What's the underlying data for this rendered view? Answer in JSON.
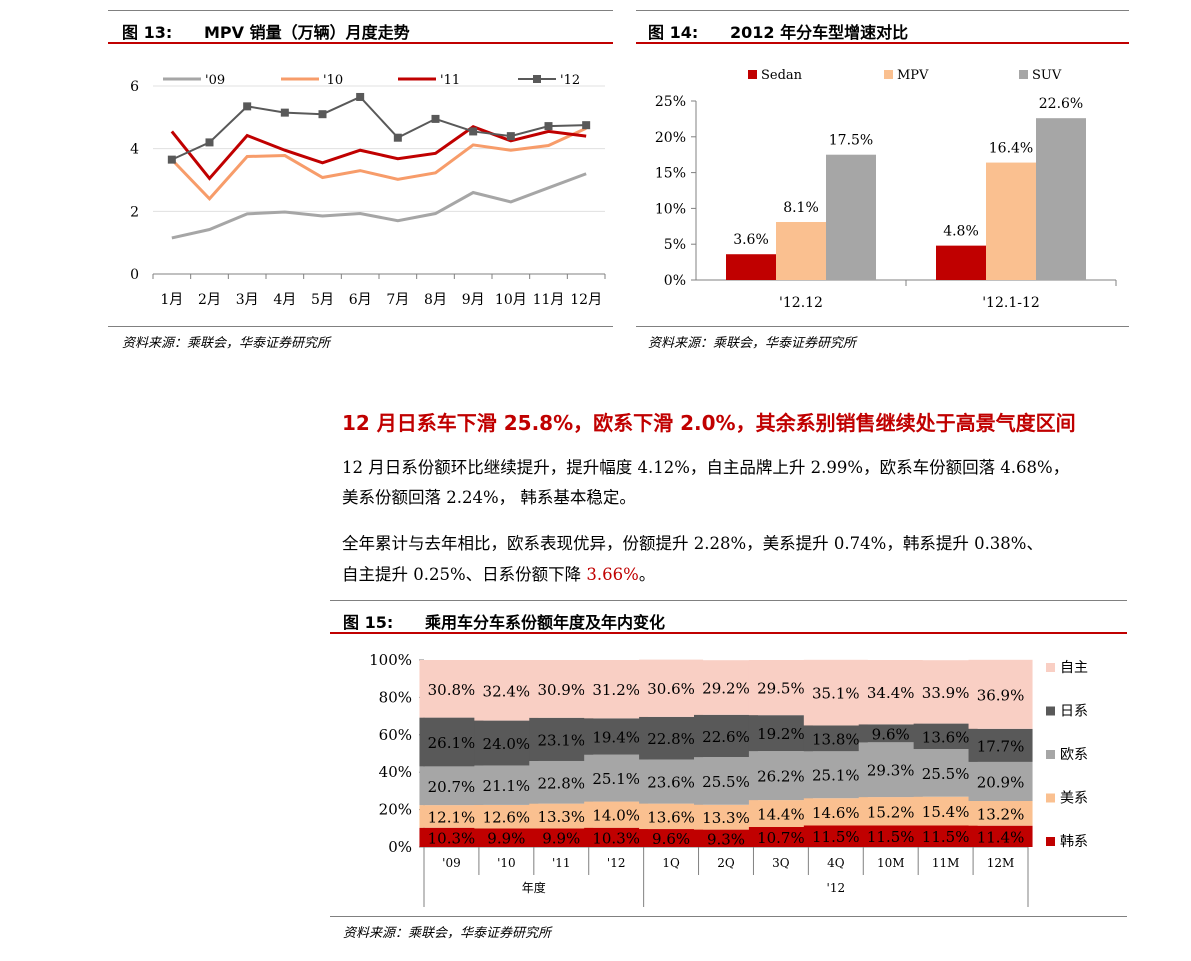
{
  "fig13": {
    "label": "图 13:",
    "title": "MPV 销量（万辆）月度走势",
    "source": "资料来源：乘联会，华泰证券研究所",
    "chart_data": {
      "type": "line",
      "categories": [
        "1月",
        "2月",
        "3月",
        "4月",
        "5月",
        "6月",
        "7月",
        "8月",
        "9月",
        "10月",
        "11月",
        "12月"
      ],
      "ylim": [
        0,
        6
      ],
      "yticks": [
        "0",
        "2",
        "4",
        "6"
      ],
      "legend_position": "top",
      "grid": true,
      "series": [
        {
          "name": "'09",
          "color": "#a6a6a6",
          "values": [
            1.15,
            1.42,
            1.92,
            1.98,
            1.85,
            1.93,
            1.7,
            1.93,
            2.6,
            2.3,
            2.75,
            3.2
          ]
        },
        {
          "name": "'10",
          "color": "#f79c6a",
          "values": [
            3.65,
            2.4,
            3.75,
            3.78,
            3.08,
            3.3,
            3.02,
            3.23,
            4.12,
            3.95,
            4.1,
            4.65
          ]
        },
        {
          "name": "'11",
          "color": "#c00000",
          "values": [
            4.55,
            3.05,
            4.42,
            3.95,
            3.55,
            3.95,
            3.68,
            3.85,
            4.7,
            4.25,
            4.55,
            4.4
          ]
        },
        {
          "name": "'12",
          "color": "#595959",
          "values": [
            3.65,
            4.2,
            5.35,
            5.15,
            5.1,
            5.65,
            4.35,
            4.95,
            4.55,
            4.4,
            4.72,
            4.75
          ]
        }
      ]
    }
  },
  "fig14": {
    "label": "图 14:",
    "title": "2012 年分车型增速对比",
    "source": "资料来源：乘联会，华泰证券研究所",
    "chart_data": {
      "type": "bar",
      "categories": [
        "'12.12",
        "'12.1-12"
      ],
      "ylim": [
        0,
        25
      ],
      "yticks": [
        "0%",
        "5%",
        "10%",
        "15%",
        "20%",
        "25%"
      ],
      "legend_position": "top",
      "grid": false,
      "series": [
        {
          "name": "Sedan",
          "color": "#c00000",
          "values": [
            3.6,
            4.8
          ],
          "labels": [
            "3.6%",
            "4.8%"
          ]
        },
        {
          "name": "MPV",
          "color": "#fac090",
          "values": [
            8.1,
            16.4
          ],
          "labels": [
            "8.1%",
            "16.4%"
          ]
        },
        {
          "name": "SUV",
          "color": "#a6a6a6",
          "values": [
            17.5,
            22.6
          ],
          "labels": [
            "17.5%",
            "22.6%"
          ]
        }
      ]
    }
  },
  "section": {
    "heading": "12 月日系车下滑 25.8%，欧系下滑 2.0%，其余系别销售继续处于高景气度区间",
    "para1_line1": "12 月日系份额环比继续提升，提升幅度 4.12%，自主品牌上升 2.99%，欧系车份额回落 4.68%，",
    "para1_line2": "美系份额回落 2.24%，  韩系基本稳定。",
    "para2_line1": "全年累计与去年相比，欧系表现优异，份额提升 2.28%，美系提升 0.74%，韩系提升 0.38%、",
    "para2_line2_a": "自主提升 0.25%、日系份额下降 ",
    "para2_line2_b": "3.66%",
    "para2_line2_c": "。"
  },
  "fig15": {
    "label": "图 15:",
    "title": "乘用车分车系份额年度及年内变化",
    "source": "资料来源：乘联会，华泰证券研究所",
    "chart_data": {
      "type": "bar",
      "stacked": true,
      "categories": [
        "'09",
        "'10",
        "'11",
        "'12",
        "1Q",
        "2Q",
        "3Q",
        "4Q",
        "10M",
        "11M",
        "12M"
      ],
      "groups": [
        {
          "label": "年度",
          "span": 4
        },
        {
          "label": "'12",
          "span": 7
        }
      ],
      "ylim": [
        0,
        100
      ],
      "yticks": [
        "0%",
        "20%",
        "40%",
        "60%",
        "80%",
        "100%"
      ],
      "legend_position": "right",
      "grid": false,
      "series": [
        {
          "name": "韩系",
          "color": "#c00000",
          "values": [
            10.3,
            9.9,
            9.9,
            10.3,
            9.6,
            9.3,
            10.7,
            11.5,
            11.5,
            11.5,
            11.4
          ]
        },
        {
          "name": "美系",
          "color": "#fac090",
          "values": [
            12.1,
            12.6,
            13.3,
            14.0,
            13.6,
            13.3,
            14.4,
            14.6,
            15.2,
            15.4,
            13.2
          ]
        },
        {
          "name": "欧系",
          "color": "#a6a6a6",
          "values": [
            20.7,
            21.1,
            22.8,
            25.1,
            23.6,
            25.5,
            26.2,
            25.1,
            29.3,
            25.5,
            20.9
          ]
        },
        {
          "name": "日系",
          "color": "#595959",
          "values": [
            26.1,
            24.0,
            23.1,
            19.4,
            22.8,
            22.6,
            19.2,
            13.8,
            9.6,
            13.6,
            17.7
          ]
        },
        {
          "name": "自主",
          "color": "#f9cfc4",
          "values": [
            30.8,
            32.4,
            30.9,
            31.2,
            30.6,
            29.2,
            29.5,
            35.1,
            34.4,
            33.9,
            36.9
          ]
        }
      ]
    }
  }
}
